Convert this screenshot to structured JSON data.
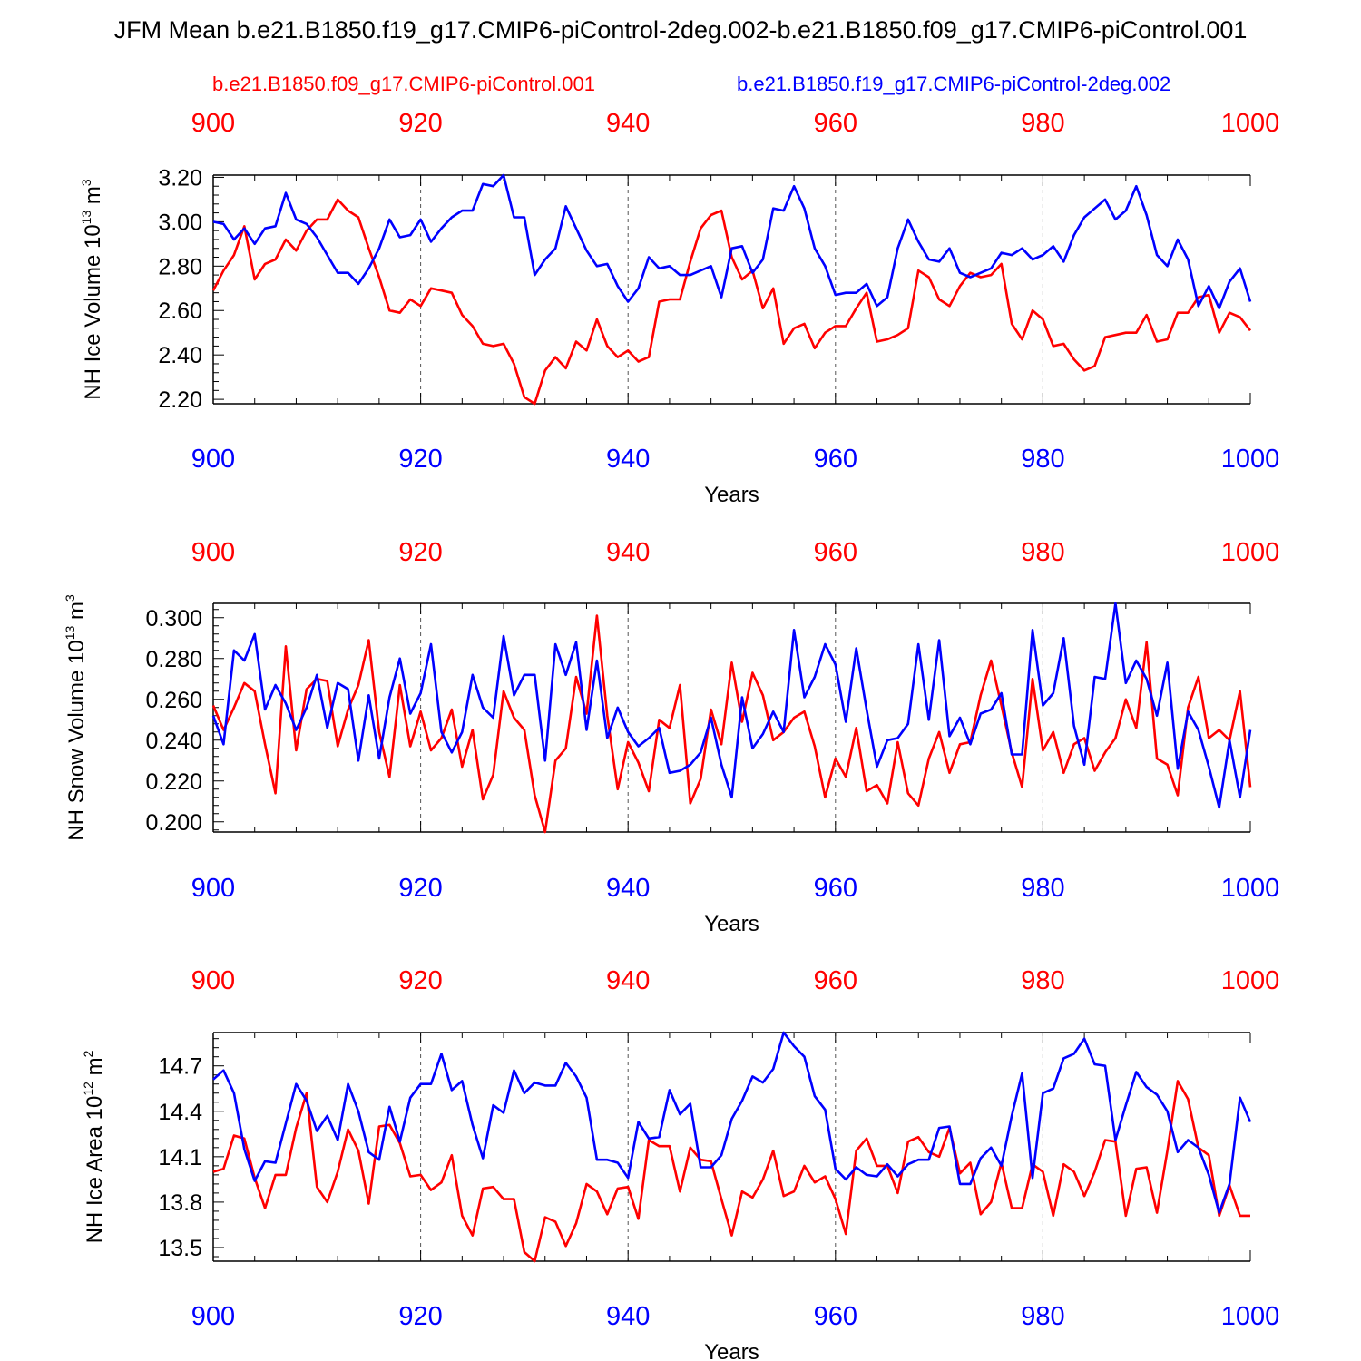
{
  "title": "JFM Mean b.e21.B1850.f19_g17.CMIP6-piControl-2deg.002-b.e21.B1850.f09_g17.CMIP6-piControl.001",
  "legend": {
    "red": "b.e21.B1850.f09_g17.CMIP6-piControl.001",
    "blue": "b.e21.B1850.f19_g17.CMIP6-piControl-2deg.002"
  },
  "colors": {
    "red": "#ff0000",
    "blue": "#0000ff",
    "axis": "#000000",
    "grid": "#555555"
  },
  "chart_data": [
    {
      "type": "line",
      "id": "ice-volume",
      "title": "",
      "ylabel": {
        "main": "NH Ice Volume 10",
        "exp": "13",
        "unit": " m",
        "unit_exp": "3"
      },
      "xlabel": "Years",
      "xlim": [
        900,
        1000
      ],
      "ylim": [
        2.18,
        3.21
      ],
      "xticks": [
        900,
        920,
        940,
        960,
        980,
        1000
      ],
      "yticks": [
        2.2,
        2.4,
        2.6,
        2.8,
        3.0,
        3.2
      ],
      "ytick_labels": [
        "2.20",
        "2.40",
        "2.60",
        "2.80",
        "3.00",
        "3.20"
      ],
      "x_start": 900,
      "series": [
        {
          "name": "b.e21.B1850.f09_g17.CMIP6-piControl.001",
          "color": "red",
          "values": [
            2.69,
            2.78,
            2.85,
            2.98,
            2.74,
            2.81,
            2.83,
            2.92,
            2.87,
            2.96,
            3.01,
            3.01,
            3.1,
            3.05,
            3.02,
            2.88,
            2.75,
            2.6,
            2.59,
            2.65,
            2.62,
            2.7,
            2.69,
            2.68,
            2.58,
            2.53,
            2.45,
            2.44,
            2.45,
            2.36,
            2.21,
            2.18,
            2.33,
            2.39,
            2.34,
            2.46,
            2.42,
            2.56,
            2.44,
            2.39,
            2.42,
            2.37,
            2.39,
            2.64,
            2.65,
            2.65,
            2.82,
            2.97,
            3.03,
            3.05,
            2.84,
            2.74,
            2.78,
            2.61,
            2.7,
            2.45,
            2.52,
            2.54,
            2.43,
            2.5,
            2.53,
            2.53,
            2.61,
            2.68,
            2.46,
            2.47,
            2.49,
            2.52,
            2.78,
            2.75,
            2.65,
            2.62,
            2.71,
            2.77,
            2.75,
            2.76,
            2.81,
            2.54,
            2.47,
            2.6,
            2.56,
            2.44,
            2.45,
            2.38,
            2.33,
            2.35,
            2.48,
            2.49,
            2.5,
            2.5,
            2.58,
            2.46,
            2.47,
            2.59,
            2.59,
            2.66,
            2.67,
            2.5,
            2.59,
            2.57,
            2.51
          ]
        },
        {
          "name": "b.e21.B1850.f19_g17.CMIP6-piControl-2deg.002",
          "color": "blue",
          "values": [
            3.0,
            2.99,
            2.92,
            2.97,
            2.9,
            2.97,
            2.98,
            3.13,
            3.01,
            2.99,
            2.93,
            2.85,
            2.77,
            2.77,
            2.72,
            2.79,
            2.88,
            3.01,
            2.93,
            2.94,
            3.01,
            2.91,
            2.97,
            3.02,
            3.05,
            3.05,
            3.17,
            3.16,
            3.21,
            3.02,
            3.02,
            2.76,
            2.83,
            2.88,
            3.07,
            2.97,
            2.87,
            2.8,
            2.81,
            2.71,
            2.64,
            2.7,
            2.84,
            2.79,
            2.8,
            2.76,
            2.76,
            2.78,
            2.8,
            2.66,
            2.88,
            2.89,
            2.77,
            2.83,
            3.06,
            3.05,
            3.16,
            3.06,
            2.88,
            2.8,
            2.67,
            2.68,
            2.68,
            2.72,
            2.62,
            2.66,
            2.88,
            3.01,
            2.91,
            2.83,
            2.82,
            2.88,
            2.77,
            2.75,
            2.77,
            2.79,
            2.86,
            2.85,
            2.88,
            2.83,
            2.85,
            2.89,
            2.82,
            2.94,
            3.02,
            3.06,
            3.1,
            3.01,
            3.05,
            3.16,
            3.03,
            2.85,
            2.8,
            2.92,
            2.83,
            2.62,
            2.71,
            2.61,
            2.73,
            2.79,
            2.64
          ]
        }
      ]
    },
    {
      "type": "line",
      "id": "snow-volume",
      "title": "",
      "ylabel": {
        "main": "NH Snow Volume 10",
        "exp": "13",
        "unit": " m",
        "unit_exp": "3"
      },
      "xlabel": "Years",
      "xlim": [
        900,
        1000
      ],
      "ylim": [
        0.195,
        0.307
      ],
      "xticks": [
        900,
        920,
        940,
        960,
        980,
        1000
      ],
      "yticks": [
        0.2,
        0.22,
        0.24,
        0.26,
        0.28,
        0.3
      ],
      "ytick_labels": [
        "0.200",
        "0.220",
        "0.240",
        "0.260",
        "0.280",
        "0.300"
      ],
      "x_start": 900,
      "series": [
        {
          "name": "b.e21.B1850.f09_g17.CMIP6-piControl.001",
          "color": "red",
          "values": [
            0.257,
            0.245,
            0.256,
            0.268,
            0.264,
            0.238,
            0.214,
            0.286,
            0.235,
            0.265,
            0.27,
            0.269,
            0.237,
            0.255,
            0.267,
            0.289,
            0.244,
            0.222,
            0.267,
            0.237,
            0.254,
            0.235,
            0.241,
            0.255,
            0.227,
            0.245,
            0.211,
            0.223,
            0.264,
            0.251,
            0.245,
            0.213,
            0.195,
            0.23,
            0.236,
            0.271,
            0.253,
            0.301,
            0.252,
            0.216,
            0.239,
            0.229,
            0.215,
            0.25,
            0.246,
            0.267,
            0.209,
            0.221,
            0.255,
            0.238,
            0.278,
            0.249,
            0.273,
            0.262,
            0.24,
            0.244,
            0.251,
            0.254,
            0.237,
            0.212,
            0.231,
            0.222,
            0.246,
            0.215,
            0.218,
            0.209,
            0.239,
            0.214,
            0.208,
            0.231,
            0.244,
            0.224,
            0.238,
            0.239,
            0.262,
            0.279,
            0.257,
            0.234,
            0.217,
            0.27,
            0.235,
            0.244,
            0.224,
            0.238,
            0.241,
            0.225,
            0.234,
            0.241,
            0.26,
            0.246,
            0.288,
            0.231,
            0.228,
            0.213,
            0.256,
            0.271,
            0.241,
            0.245,
            0.24,
            0.264,
            0.217
          ]
        },
        {
          "name": "b.e21.B1850.f19_g17.CMIP6-piControl-2deg.002",
          "color": "blue",
          "values": [
            0.252,
            0.238,
            0.284,
            0.279,
            0.292,
            0.255,
            0.267,
            0.258,
            0.245,
            0.256,
            0.272,
            0.246,
            0.268,
            0.265,
            0.23,
            0.262,
            0.231,
            0.261,
            0.28,
            0.253,
            0.263,
            0.287,
            0.244,
            0.234,
            0.244,
            0.272,
            0.256,
            0.251,
            0.291,
            0.262,
            0.272,
            0.272,
            0.23,
            0.287,
            0.272,
            0.288,
            0.245,
            0.279,
            0.241,
            0.256,
            0.244,
            0.237,
            0.241,
            0.246,
            0.224,
            0.225,
            0.228,
            0.234,
            0.251,
            0.228,
            0.212,
            0.261,
            0.236,
            0.243,
            0.254,
            0.244,
            0.294,
            0.261,
            0.271,
            0.287,
            0.277,
            0.249,
            0.285,
            0.255,
            0.227,
            0.24,
            0.241,
            0.248,
            0.287,
            0.25,
            0.289,
            0.242,
            0.251,
            0.238,
            0.253,
            0.255,
            0.263,
            0.233,
            0.233,
            0.294,
            0.257,
            0.263,
            0.29,
            0.247,
            0.228,
            0.271,
            0.27,
            0.307,
            0.268,
            0.279,
            0.27,
            0.252,
            0.278,
            0.226,
            0.254,
            0.245,
            0.227,
            0.207,
            0.24,
            0.212,
            0.245
          ]
        }
      ]
    },
    {
      "type": "line",
      "id": "ice-area",
      "title": "",
      "ylabel": {
        "main": "NH Ice Area 10",
        "exp": "12",
        "unit": " m",
        "unit_exp": "2"
      },
      "xlabel": "Years",
      "xlim": [
        900,
        1000
      ],
      "ylim": [
        13.41,
        14.92
      ],
      "xticks": [
        900,
        920,
        940,
        960,
        980,
        1000
      ],
      "yticks": [
        13.5,
        13.8,
        14.1,
        14.4,
        14.7
      ],
      "ytick_labels": [
        "13.5",
        "13.8",
        "14.1",
        "14.4",
        "14.7"
      ],
      "x_start": 900,
      "series": [
        {
          "name": "b.e21.B1850.f09_g17.CMIP6-piControl.001",
          "color": "red",
          "values": [
            14.0,
            14.02,
            14.24,
            14.22,
            13.96,
            13.76,
            13.98,
            13.98,
            14.29,
            14.52,
            13.9,
            13.8,
            14.0,
            14.28,
            14.14,
            13.79,
            14.3,
            14.31,
            14.19,
            13.97,
            13.98,
            13.88,
            13.93,
            14.11,
            13.71,
            13.58,
            13.89,
            13.9,
            13.82,
            13.82,
            13.47,
            13.41,
            13.7,
            13.67,
            13.51,
            13.66,
            13.92,
            13.87,
            13.72,
            13.89,
            13.9,
            13.69,
            14.21,
            14.17,
            14.17,
            13.87,
            14.16,
            14.08,
            14.07,
            13.82,
            13.58,
            13.87,
            13.83,
            13.95,
            14.14,
            13.84,
            13.87,
            14.04,
            13.93,
            13.97,
            13.82,
            13.59,
            14.14,
            14.22,
            14.04,
            14.04,
            13.86,
            14.2,
            14.23,
            14.13,
            14.1,
            14.29,
            13.99,
            14.06,
            13.72,
            13.8,
            14.06,
            13.76,
            13.76,
            14.05,
            14.0,
            13.71,
            14.05,
            14.0,
            13.84,
            14.0,
            14.21,
            14.2,
            13.71,
            14.02,
            14.03,
            13.73,
            14.14,
            14.6,
            14.48,
            14.16,
            14.11,
            13.71,
            13.91,
            13.71,
            13.71
          ]
        },
        {
          "name": "b.e21.B1850.f19_g17.CMIP6-piControl-2deg.002",
          "color": "blue",
          "values": [
            14.61,
            14.67,
            14.52,
            14.15,
            13.94,
            14.07,
            14.06,
            14.32,
            14.58,
            14.47,
            14.27,
            14.37,
            14.21,
            14.58,
            14.4,
            14.13,
            14.08,
            14.43,
            14.2,
            14.49,
            14.58,
            14.58,
            14.78,
            14.54,
            14.6,
            14.31,
            14.09,
            14.44,
            14.39,
            14.67,
            14.52,
            14.59,
            14.57,
            14.57,
            14.72,
            14.63,
            14.49,
            14.08,
            14.08,
            14.06,
            13.96,
            14.33,
            14.22,
            14.23,
            14.54,
            14.38,
            14.45,
            14.03,
            14.03,
            14.11,
            14.35,
            14.47,
            14.63,
            14.59,
            14.68,
            14.92,
            14.83,
            14.76,
            14.5,
            14.41,
            14.02,
            13.95,
            14.03,
            13.98,
            13.97,
            14.05,
            13.97,
            14.05,
            14.08,
            14.08,
            14.29,
            14.3,
            13.92,
            13.92,
            14.09,
            14.16,
            14.04,
            14.37,
            14.65,
            13.96,
            14.52,
            14.55,
            14.75,
            14.78,
            14.88,
            14.71,
            14.7,
            14.21,
            14.44,
            14.66,
            14.56,
            14.51,
            14.4,
            14.13,
            14.21,
            14.16,
            13.98,
            13.73,
            13.92,
            14.49,
            14.33
          ]
        }
      ]
    }
  ]
}
